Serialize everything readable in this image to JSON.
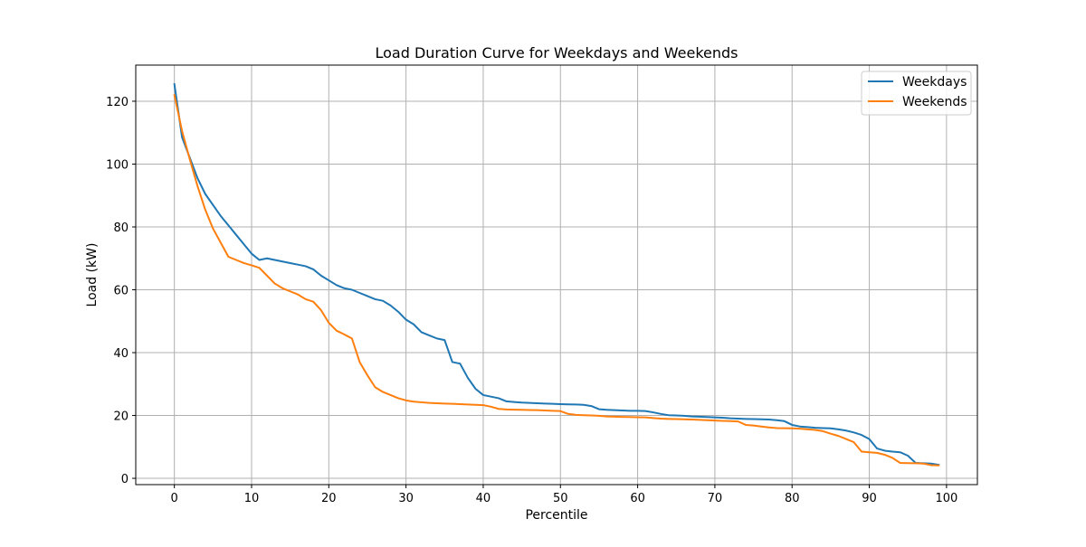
{
  "chart_data": {
    "type": "line",
    "title": "Load Duration Curve for Weekdays and Weekends",
    "xlabel": "Percentile",
    "ylabel": "Load (kW)",
    "xlim": [
      -5,
      104
    ],
    "ylim": [
      -2,
      131.5
    ],
    "xticks": [
      0,
      10,
      20,
      30,
      40,
      50,
      60,
      70,
      80,
      90,
      100
    ],
    "yticks": [
      0,
      20,
      40,
      60,
      80,
      100,
      120
    ],
    "grid": true,
    "legend_position": "top-right",
    "x": [
      0,
      1,
      2,
      3,
      4,
      5,
      6,
      7,
      8,
      9,
      10,
      11,
      12,
      13,
      14,
      15,
      16,
      17,
      18,
      19,
      20,
      21,
      22,
      23,
      24,
      25,
      26,
      27,
      28,
      29,
      30,
      31,
      32,
      33,
      34,
      35,
      36,
      37,
      38,
      39,
      40,
      41,
      42,
      43,
      44,
      45,
      46,
      47,
      48,
      49,
      50,
      51,
      52,
      53,
      54,
      55,
      56,
      57,
      58,
      59,
      60,
      61,
      62,
      63,
      64,
      65,
      66,
      67,
      68,
      69,
      70,
      71,
      72,
      73,
      74,
      75,
      76,
      77,
      78,
      79,
      80,
      81,
      82,
      83,
      84,
      85,
      86,
      87,
      88,
      89,
      90,
      91,
      92,
      93,
      94,
      95,
      96,
      97,
      98,
      99
    ],
    "series": [
      {
        "name": "Weekdays",
        "color": "#1f77b4",
        "values": [
          125.5,
          108.5,
          102,
          95.5,
          90.5,
          87,
          83.5,
          80.5,
          77.5,
          74.5,
          71.5,
          69.5,
          70,
          69.5,
          69,
          68.5,
          68,
          67.5,
          66.5,
          64.5,
          63,
          61.5,
          60.5,
          60,
          59,
          58,
          57,
          56.5,
          55,
          53,
          50.5,
          49,
          46.5,
          45.5,
          44.5,
          44,
          37,
          36.5,
          32,
          28.5,
          26.5,
          26,
          25.5,
          24.5,
          24.3,
          24.1,
          24,
          23.9,
          23.8,
          23.7,
          23.6,
          23.55,
          23.5,
          23.4,
          23,
          22,
          21.8,
          21.7,
          21.6,
          21.5,
          21.5,
          21.4,
          21,
          20.5,
          20.1,
          20,
          19.9,
          19.7,
          19.6,
          19.5,
          19.4,
          19.3,
          19.1,
          19,
          18.9,
          18.85,
          18.8,
          18.7,
          18.5,
          18.2,
          17,
          16.5,
          16.3,
          16.1,
          16,
          15.9,
          15.6,
          15.2,
          14.6,
          13.8,
          12.5,
          9.5,
          8.8,
          8.5,
          8.3,
          7.2,
          4.9,
          4.8,
          4.7,
          4.3
        ]
      },
      {
        "name": "Weekends",
        "color": "#ff7f0e",
        "values": [
          122,
          110.5,
          101.5,
          93,
          85.5,
          79.5,
          75,
          70.5,
          69.5,
          68.5,
          67.8,
          67,
          64.5,
          62,
          60.5,
          59.5,
          58.5,
          57,
          56.2,
          53.5,
          49.5,
          47,
          45.8,
          44.5,
          37,
          32.8,
          29,
          27.5,
          26.5,
          25.5,
          24.8,
          24.4,
          24.2,
          24,
          23.9,
          23.8,
          23.7,
          23.6,
          23.5,
          23.4,
          23.3,
          22.8,
          22.1,
          21.9,
          21.85,
          21.8,
          21.75,
          21.7,
          21.6,
          21.5,
          21.4,
          20.5,
          20.2,
          20.1,
          20,
          19.9,
          19.7,
          19.6,
          19.55,
          19.5,
          19.45,
          19.4,
          19.2,
          19,
          18.9,
          18.85,
          18.8,
          18.7,
          18.6,
          18.5,
          18.4,
          18.3,
          18.2,
          18.1,
          17,
          16.8,
          16.5,
          16.2,
          16,
          15.95,
          15.9,
          15.8,
          15.6,
          15.4,
          15,
          14.2,
          13.5,
          12.5,
          11.5,
          8.5,
          8.3,
          8.1,
          7.5,
          6.5,
          4.9,
          4.85,
          4.8,
          4.7,
          4.2,
          4.1
        ]
      }
    ]
  }
}
